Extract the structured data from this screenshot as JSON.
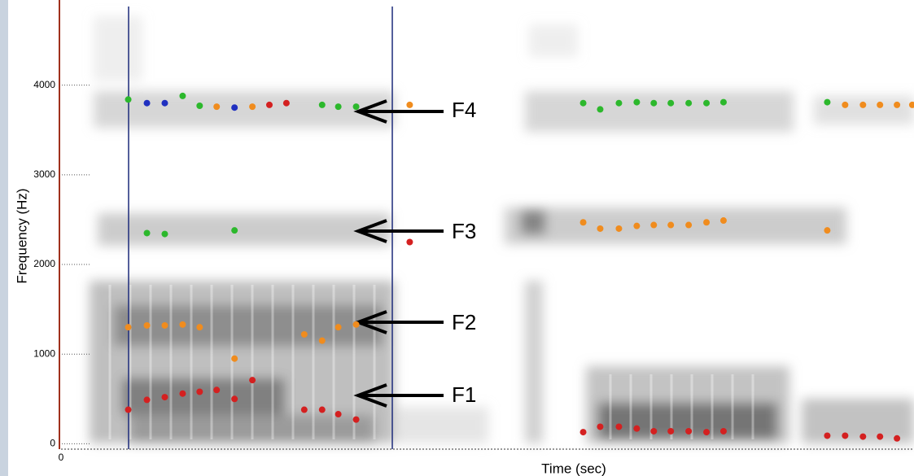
{
  "chart_data": {
    "type": "scatter",
    "x_label": "Time (sec)",
    "y_label": "Frequency (Hz)",
    "xlim": [
      0,
      1.003
    ],
    "xticks": [
      0
    ],
    "ylim": [
      -60,
      4950
    ],
    "yticks": [
      0,
      1000,
      2000,
      3000,
      4000
    ],
    "annotations": [
      "F4",
      "F3",
      "F2",
      "F1"
    ],
    "series": [
      {
        "color": "#2cb82c",
        "x": [
          0.079,
          0.143,
          0.163,
          0.101,
          0.122,
          0.204,
          0.307,
          0.326,
          0.347,
          0.614,
          0.634,
          0.656,
          0.677,
          0.697,
          0.717,
          0.738,
          0.759,
          0.779,
          0.901
        ],
        "values": [
          3840,
          3880,
          3770,
          2350,
          2340,
          2380,
          3780,
          3760,
          3760,
          3800,
          3730,
          3800,
          3810,
          3800,
          3800,
          3800,
          3800,
          3810,
          3810
        ]
      },
      {
        "color": "#2030c0",
        "x": [
          0.101,
          0.122,
          0.204
        ],
        "values": [
          3800,
          3800,
          3750
        ]
      },
      {
        "color": "#f08c1e",
        "x": [
          0.183,
          0.225,
          0.41,
          0.079,
          0.101,
          0.122,
          0.143,
          0.163,
          0.204,
          0.286,
          0.307,
          0.326,
          0.347,
          0.614,
          0.634,
          0.656,
          0.677,
          0.697,
          0.717,
          0.738,
          0.759,
          0.779,
          0.901,
          0.922,
          0.943,
          0.963,
          0.983,
          1.001
        ],
        "values": [
          3760,
          3760,
          3780,
          1300,
          1320,
          1320,
          1330,
          1300,
          950,
          1220,
          1150,
          1300,
          1330,
          2470,
          2400,
          2400,
          2430,
          2440,
          2440,
          2440,
          2470,
          2490,
          2380,
          3780,
          3780,
          3780,
          3780,
          3780
        ]
      },
      {
        "color": "#d42020",
        "x": [
          0.245,
          0.265,
          0.41,
          0.079,
          0.101,
          0.122,
          0.143,
          0.163,
          0.183,
          0.204,
          0.225,
          0.286,
          0.307,
          0.326,
          0.347,
          0.614,
          0.634,
          0.656,
          0.677,
          0.697,
          0.717,
          0.738,
          0.759,
          0.779,
          0.901,
          0.922,
          0.943,
          0.963,
          0.983
        ],
        "values": [
          3780,
          3800,
          2250,
          380,
          490,
          520,
          560,
          580,
          600,
          500,
          710,
          380,
          380,
          330,
          270,
          130,
          190,
          190,
          170,
          140,
          140,
          140,
          130,
          140,
          90,
          90,
          80,
          80,
          60
        ]
      }
    ]
  }
}
